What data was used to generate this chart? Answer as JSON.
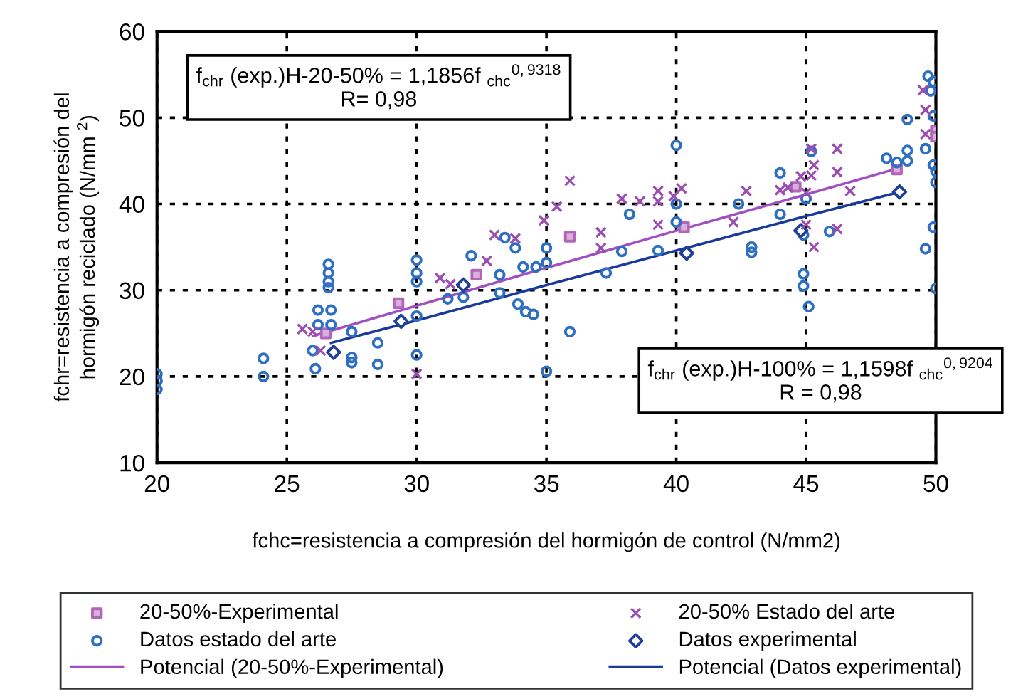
{
  "chart_data": {
    "type": "scatter",
    "xlabel": "fchc=resistencia a compresión del hormigón de control (N/mm2)",
    "ylabel": "fchr=resistencia a compresión del\nhormigón reciclado (N/mm $^{2}$)",
    "xlim": [
      20,
      50
    ],
    "ylim": [
      10,
      60
    ],
    "xticks": [
      20,
      25,
      30,
      35,
      40,
      45,
      50
    ],
    "yticks": [
      10,
      20,
      30,
      40,
      50,
      60
    ],
    "grid": true,
    "legend": "bottom",
    "annotations": [
      "f$_{chr}$ (exp.)H-20-50% = 1,1856f $_{chc}$$^{0,9318}$\nR= 0,98",
      "f$_{chr}$ (exp.)H-100% = 1,1598f $_{chc}$$^{0,9204}$\nR = 0,98"
    ],
    "series": [
      {
        "name": "20-50%-Experimental",
        "marker": "square",
        "color": "#b266b8",
        "x": [
          26.5,
          29.3,
          32.3,
          35.9,
          40.3,
          44.6,
          48.5,
          50,
          50
        ],
        "values": [
          25.0,
          28.5,
          31.8,
          36.2,
          37.3,
          42.0,
          44.0,
          48.5,
          47.8
        ]
      },
      {
        "name": "20-50% Estado del arte",
        "marker": "cross",
        "color": "#9a4fb0",
        "x": [
          25.6,
          26.0,
          26.3,
          30.0,
          30.9,
          31.3,
          32.7,
          33.0,
          33.8,
          34.9,
          35.4,
          35.9,
          37.1,
          37.1,
          37.9,
          38.6,
          39.3,
          39.3,
          39.3,
          39.9,
          40.2,
          42.2,
          42.7,
          44.0,
          44.3,
          44.8,
          45.2,
          45.3,
          45.2,
          45.0,
          45.0,
          45.3,
          46.2,
          46.2,
          46.2,
          46.7,
          49.5,
          49.6,
          49.6
        ],
        "values": [
          25.5,
          25.2,
          23.0,
          20.3,
          31.4,
          30.7,
          33.4,
          36.4,
          36.0,
          38.1,
          39.7,
          42.7,
          36.7,
          34.9,
          40.6,
          40.3,
          41.5,
          40.3,
          37.6,
          40.9,
          41.8,
          37.9,
          41.5,
          41.6,
          41.9,
          43.2,
          46.4,
          44.5,
          43.3,
          41.3,
          37.6,
          35.0,
          46.4,
          43.7,
          37.1,
          41.5,
          53.2,
          50.9,
          48.1
        ]
      },
      {
        "name": "Datos estado del arte",
        "marker": "circle",
        "color": "#2e6fc4",
        "x": [
          20,
          20,
          20,
          24.1,
          24.1,
          26.6,
          26.6,
          26.6,
          26.6,
          26.2,
          26.7,
          26.2,
          26.7,
          26.0,
          26.1,
          27.5,
          27.5,
          27.5,
          28.5,
          28.5,
          30,
          30,
          30,
          30,
          30,
          32.1,
          31.2,
          31.8,
          33.2,
          33.2,
          33.4,
          33.8,
          34.1,
          34.6,
          33.9,
          34.2,
          34.5,
          35,
          35,
          35,
          35.9,
          37.3,
          37.9,
          38.2,
          39.3,
          40,
          40,
          40,
          42.4,
          42.9,
          42.9,
          44.0,
          44.0,
          45.2,
          45.0,
          44.9,
          44.9,
          44.9,
          45.1,
          45.9,
          48.1,
          48.5,
          48.9,
          48.9,
          48.9,
          49.7,
          49.9,
          49.8,
          49.9,
          49.6,
          49.9,
          50,
          50,
          49.9,
          49.6,
          50
        ],
        "values": [
          20.3,
          19.5,
          18.5,
          22.1,
          20.0,
          33.0,
          32.0,
          31.0,
          30.3,
          27.7,
          27.7,
          26.0,
          26.0,
          23.0,
          20.9,
          25.2,
          22.2,
          21.6,
          23.9,
          21.4,
          33.5,
          32.0,
          31.0,
          27.0,
          22.5,
          34.0,
          29.0,
          29.2,
          31.8,
          29.7,
          36.1,
          34.9,
          32.7,
          32.7,
          28.4,
          27.5,
          27.2,
          34.9,
          33.2,
          20.6,
          25.2,
          32.0,
          34.5,
          38.8,
          34.6,
          46.8,
          40.0,
          37.9,
          40.0,
          35.0,
          34.4,
          43.6,
          38.8,
          46.1,
          40.6,
          36.4,
          31.9,
          30.5,
          28.1,
          36.8,
          45.3,
          44.8,
          49.8,
          46.2,
          45.0,
          54.8,
          54.2,
          53.1,
          50.2,
          46.4,
          44.5,
          43.8,
          42.5,
          37.3,
          34.8,
          30.2
        ]
      },
      {
        "name": "Datos experimental",
        "marker": "diamond",
        "color": "#1f3f99",
        "x": [
          26.8,
          29.4,
          31.8,
          40.4,
          44.8,
          48.6
        ],
        "values": [
          22.8,
          26.4,
          30.6,
          34.3,
          36.9,
          41.4
        ]
      },
      {
        "name": "Potencial (20-50%-Experimental)",
        "type": "line",
        "marker": "none",
        "color": "#a050c0",
        "x": [
          26,
          30,
          35,
          40,
          45,
          48.5
        ],
        "values": [
          24.7,
          28.2,
          32.6,
          36.9,
          41.1,
          44.1
        ]
      },
      {
        "name": "Potencial (Datos experimental)",
        "type": "line",
        "marker": "none",
        "color": "#1a3a9a",
        "x": [
          26.7,
          30,
          35,
          40,
          45,
          48.5
        ],
        "values": [
          23.9,
          26.5,
          30.6,
          34.6,
          38.6,
          41.3
        ]
      }
    ]
  }
}
